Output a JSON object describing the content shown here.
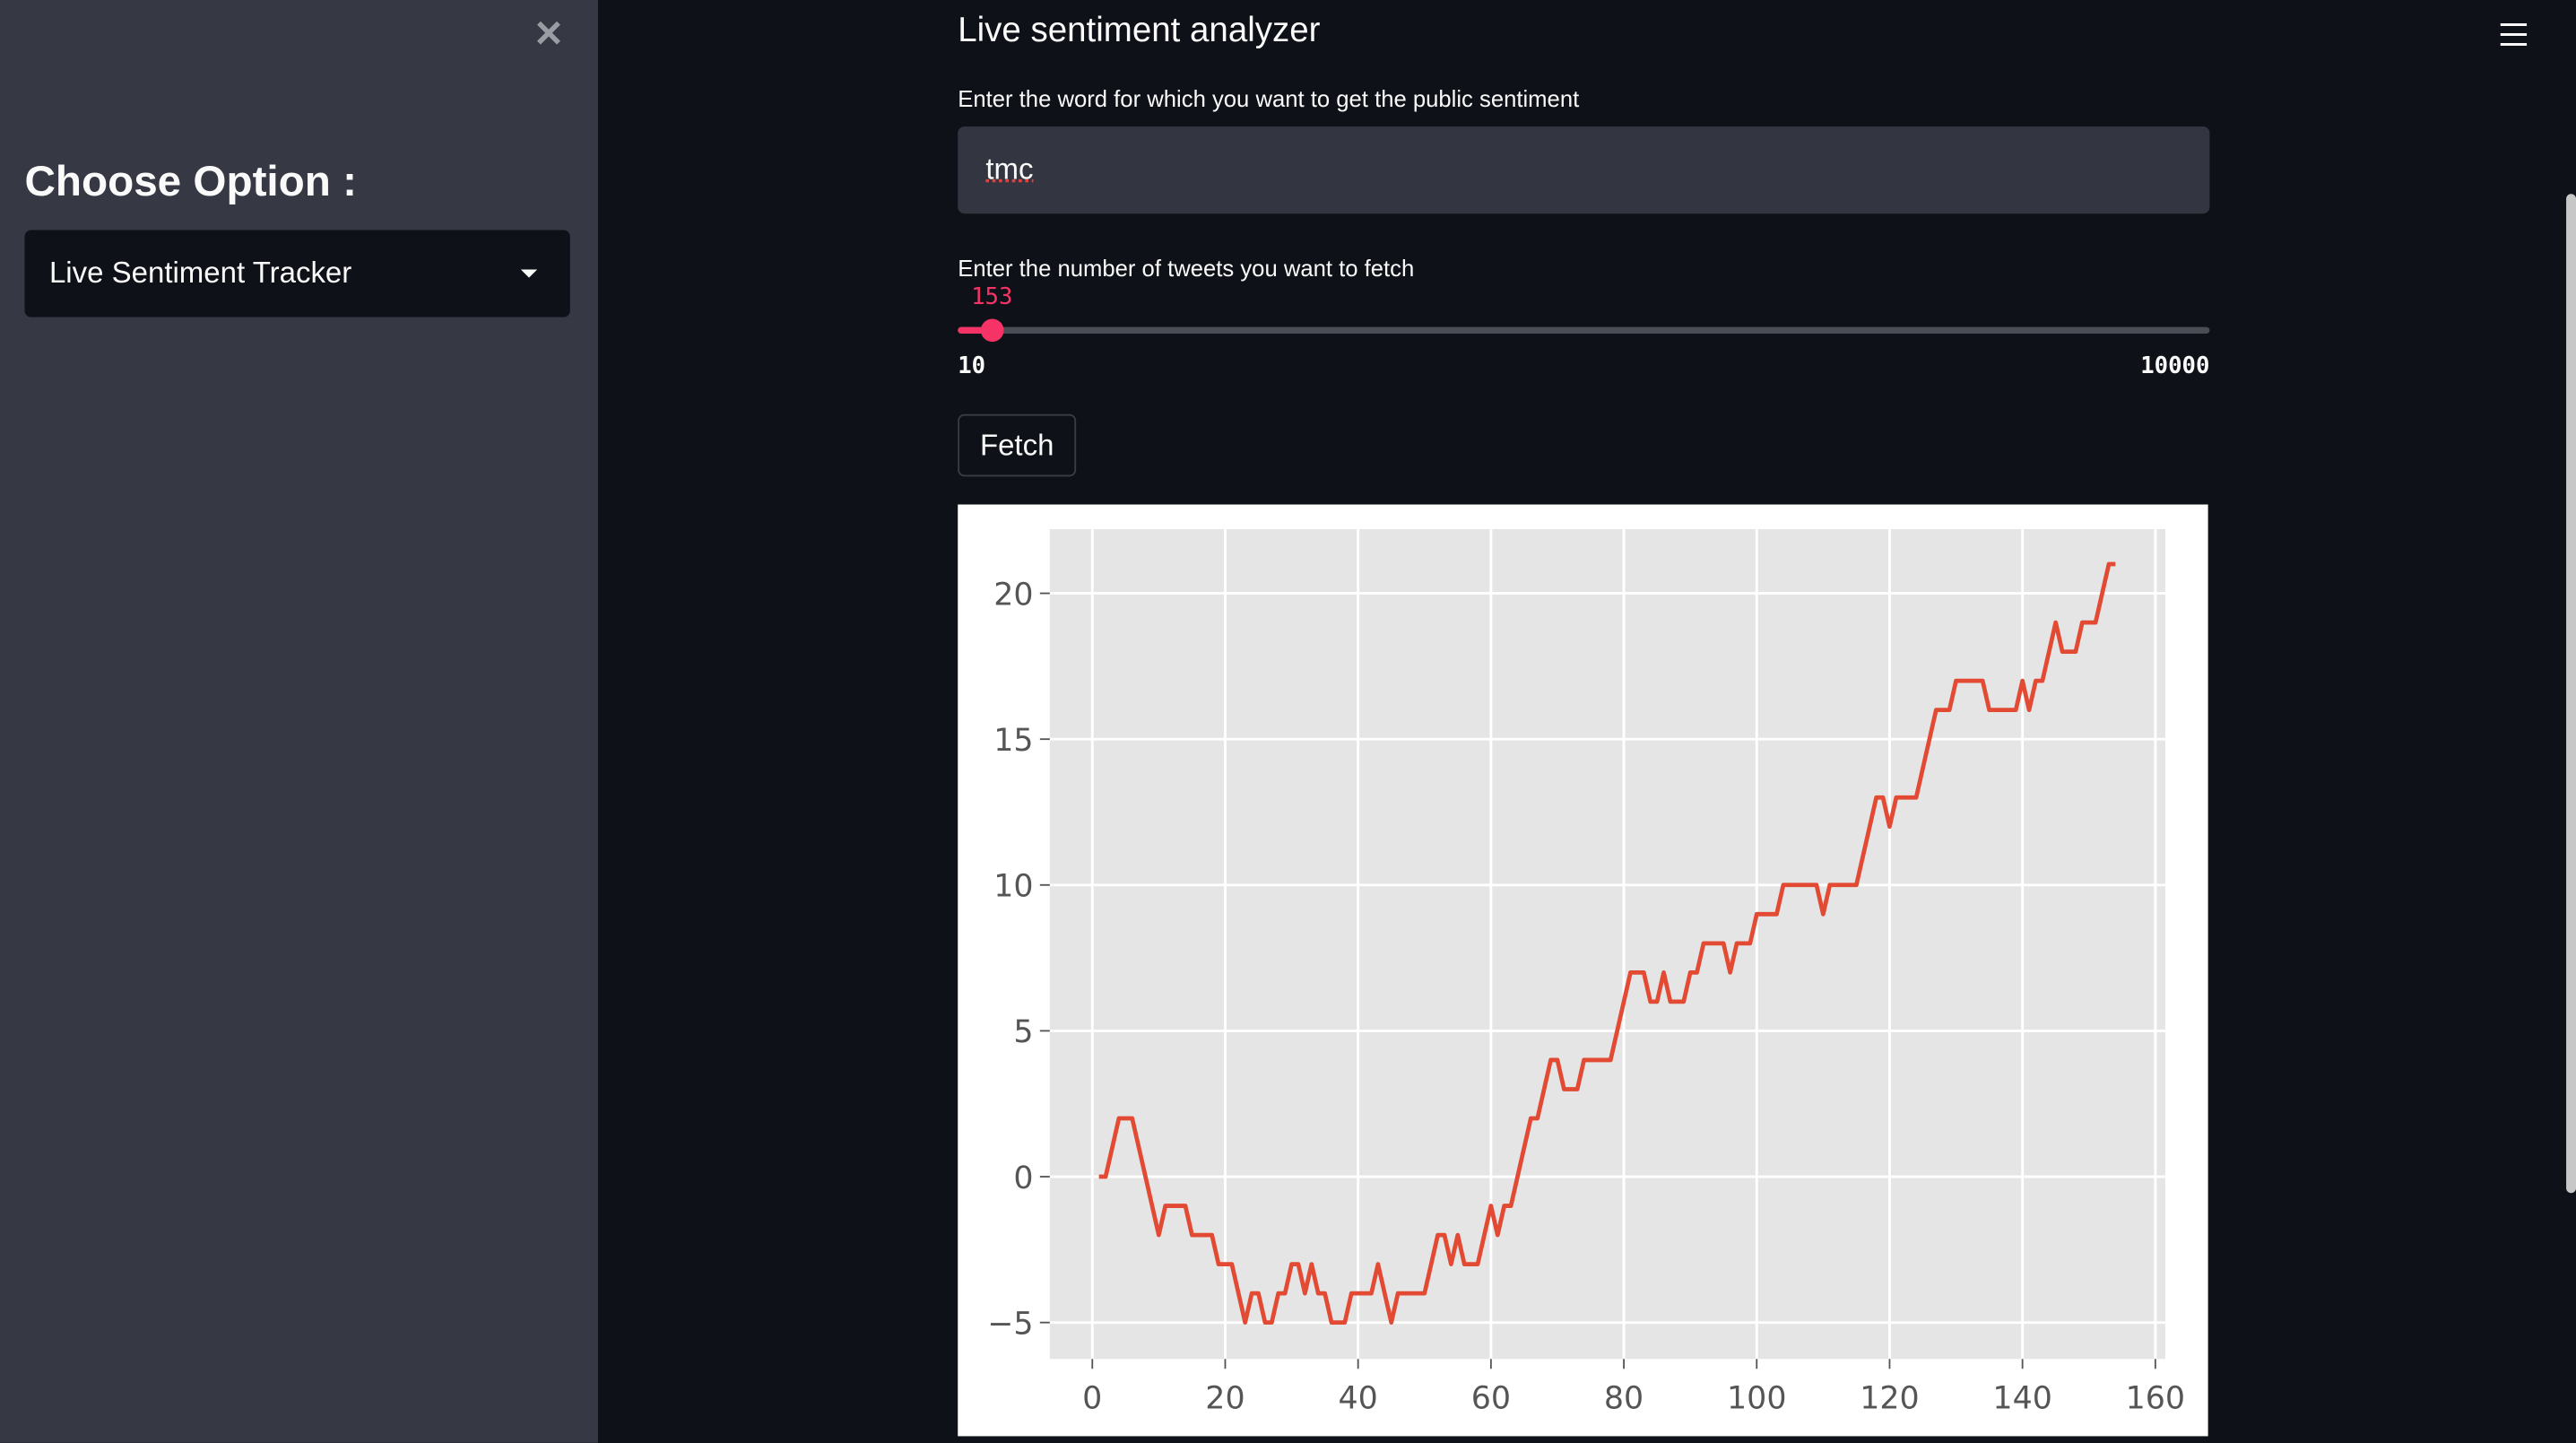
{
  "sidebar": {
    "heading": "Choose Option :",
    "select": "Live Sentiment Tracker"
  },
  "main": {
    "title": "Live sentiment analyzer",
    "word_label": "Enter the word for which you want to get the public sentiment",
    "word_input": "tmc",
    "slider": {
      "label": "Enter the number of tweets you want to fetch",
      "value": 153,
      "min": 10,
      "max": 10000
    },
    "button": "Fetch"
  },
  "chart_data": {
    "type": "line",
    "x": [
      1,
      2,
      4,
      6,
      10,
      11,
      14,
      15,
      18,
      19,
      21,
      23,
      24,
      25,
      26,
      27,
      28,
      29,
      30,
      31,
      32,
      33,
      34,
      35,
      36,
      38,
      39,
      42,
      43,
      44,
      45,
      46,
      50,
      52,
      53,
      54,
      55,
      56,
      58,
      60,
      61,
      62,
      63,
      66,
      67,
      69,
      70,
      71,
      73,
      74,
      78,
      81,
      83,
      84,
      85,
      86,
      87,
      89,
      90,
      91,
      92,
      95,
      96,
      97,
      99,
      100,
      103,
      104,
      109,
      110,
      111,
      115,
      118,
      119,
      120,
      121,
      124,
      127,
      129,
      130,
      134,
      135,
      139,
      140,
      141,
      142,
      143,
      145,
      146,
      148,
      149,
      151,
      153,
      154
    ],
    "values": [
      0,
      0,
      2,
      2,
      -2,
      -1,
      -1,
      -2,
      -2,
      -3,
      -3,
      -5,
      -4,
      -4,
      -5,
      -5,
      -4,
      -4,
      -3,
      -3,
      -4,
      -3,
      -4,
      -4,
      -5,
      -5,
      -4,
      -4,
      -3,
      -4,
      -5,
      -4,
      -4,
      -2,
      -2,
      -3,
      -2,
      -3,
      -3,
      -1,
      -2,
      -1,
      -1,
      2,
      2,
      4,
      4,
      3,
      3,
      4,
      4,
      7,
      7,
      6,
      6,
      7,
      6,
      6,
      7,
      7,
      8,
      8,
      7,
      8,
      8,
      9,
      9,
      10,
      10,
      9,
      10,
      10,
      13,
      13,
      12,
      13,
      13,
      16,
      16,
      17,
      17,
      16,
      16,
      17,
      16,
      17,
      17,
      19,
      18,
      18,
      19,
      19,
      21,
      21
    ],
    "color": "#e24a33",
    "xlim": [
      -6.4,
      161.5
    ],
    "ylim": [
      -6.25,
      22.2
    ],
    "xticks": [
      0,
      20,
      40,
      60,
      80,
      100,
      120,
      140,
      160
    ],
    "yticks": [
      {
        "value": -5,
        "label": "−5"
      },
      0,
      5,
      10,
      15,
      20
    ],
    "grid": true
  }
}
